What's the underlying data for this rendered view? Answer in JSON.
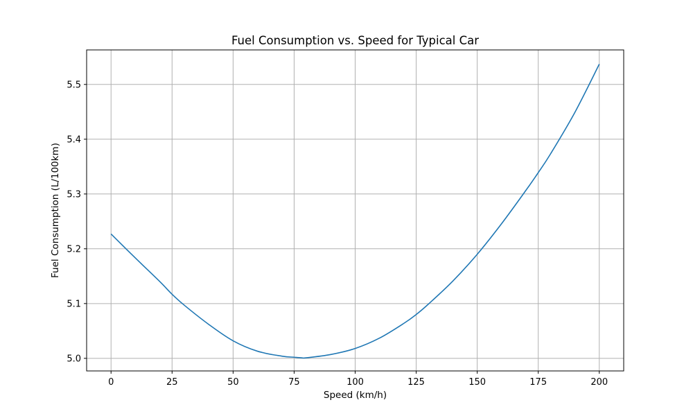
{
  "chart_data": {
    "type": "line",
    "title": "Fuel Consumption vs. Speed for Typical Car",
    "xlabel": "Speed (km/h)",
    "ylabel": "Fuel Consumption (L/100km)",
    "xlim": [
      -10,
      210
    ],
    "ylim": [
      4.977,
      5.563
    ],
    "x_ticks": [
      0,
      25,
      50,
      75,
      100,
      125,
      150,
      175,
      200
    ],
    "x_tick_labels": [
      "0",
      "25",
      "50",
      "75",
      "100",
      "125",
      "150",
      "175",
      "200"
    ],
    "y_ticks": [
      5.0,
      5.1,
      5.2,
      5.3,
      5.4,
      5.5
    ],
    "y_tick_labels": [
      "5.0",
      "5.1",
      "5.2",
      "5.3",
      "5.4",
      "5.5"
    ],
    "grid": true,
    "series": [
      {
        "color": "#1f77b4",
        "x": [
          0,
          10,
          20,
          25,
          30,
          40,
          50,
          60,
          70,
          75,
          78,
          80,
          90,
          100,
          110,
          120,
          125,
          130,
          140,
          150,
          160,
          170,
          175,
          180,
          190,
          200
        ],
        "y": [
          5.227,
          5.183,
          5.14,
          5.117,
          5.097,
          5.062,
          5.032,
          5.013,
          5.004,
          5.002,
          5.001,
          5.001,
          5.007,
          5.018,
          5.037,
          5.064,
          5.08,
          5.099,
          5.141,
          5.19,
          5.246,
          5.307,
          5.339,
          5.373,
          5.449,
          5.537
        ]
      }
    ]
  }
}
